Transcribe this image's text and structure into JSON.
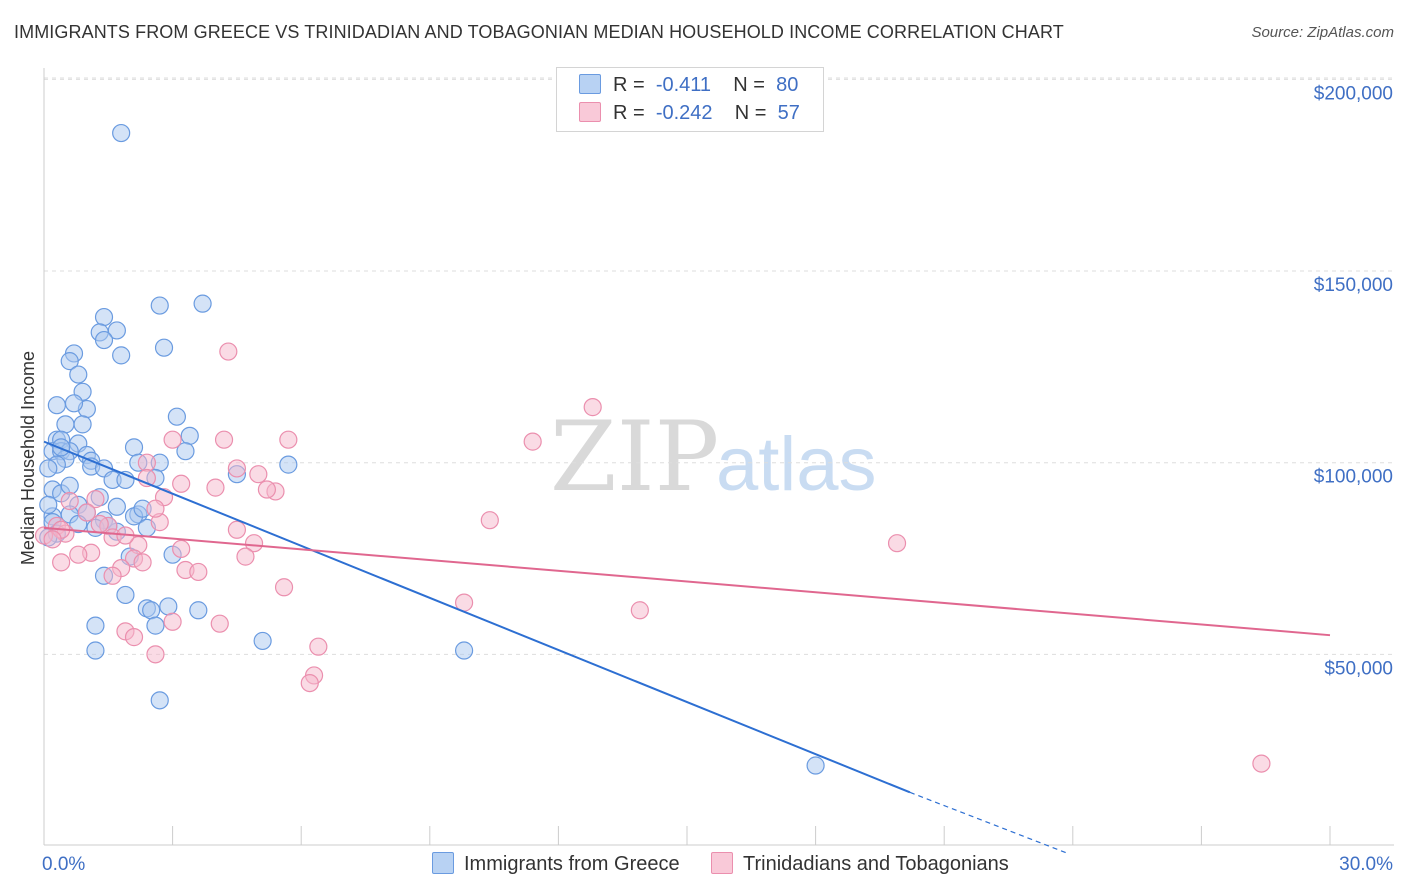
{
  "title": "IMMIGRANTS FROM GREECE VS TRINIDADIAN AND TOBAGONIAN MEDIAN HOUSEHOLD INCOME CORRELATION CHART",
  "source": "Source: ZipAtlas.com",
  "watermark": {
    "zip": "ZIP",
    "atlas": "atlas"
  },
  "legend": {
    "rows": [
      {
        "r_label": "R =",
        "r_value": "-0.411",
        "n_label": "N =",
        "n_value": "80"
      },
      {
        "r_label": "R =",
        "r_value": "-0.242",
        "n_label": "N =",
        "n_value": "57"
      }
    ]
  },
  "colors": {
    "blue_fill": "#a9c8f0",
    "blue_stroke": "#6a9be0",
    "blue_line": "#2d6fd2",
    "pink_fill": "#f5b8cb",
    "pink_stroke": "#eb8fae",
    "pink_line": "#e0678f",
    "tick_text": "#3f6fc4",
    "grid": "#dddddd"
  },
  "chart_data": {
    "type": "scatter",
    "title": "IMMIGRANTS FROM GREECE VS TRINIDADIAN AND TOBAGONIAN MEDIAN HOUSEHOLD INCOME CORRELATION CHART",
    "xlabel": "",
    "ylabel": "Median Household Income",
    "xlim": [
      0,
      30
    ],
    "ylim": [
      0,
      200000
    ],
    "x_tick_labels": [
      "0.0%",
      "30.0%"
    ],
    "y_ticks": [
      50000,
      100000,
      150000,
      200000
    ],
    "y_tick_labels": [
      "$50,000",
      "$100,000",
      "$150,000",
      "$200,000"
    ],
    "grid": "horizontal dashed",
    "legend_position": "bottom",
    "series": [
      {
        "name": "Immigrants from Greece",
        "color": "#6a9be0",
        "trend": {
          "x": [
            0,
            20.2
          ],
          "y": [
            105500,
            14000
          ],
          "dashed_to": [
            23.9,
            -2000
          ]
        },
        "points": [
          [
            1.8,
            186000
          ],
          [
            2.7,
            141000
          ],
          [
            3.7,
            141500
          ],
          [
            1.4,
            138000
          ],
          [
            1.3,
            134000
          ],
          [
            1.7,
            134500
          ],
          [
            1.4,
            132000
          ],
          [
            2.8,
            130000
          ],
          [
            1.8,
            128000
          ],
          [
            0.7,
            128500
          ],
          [
            0.6,
            126500
          ],
          [
            0.8,
            123000
          ],
          [
            0.9,
            118500
          ],
          [
            0.3,
            115000
          ],
          [
            1.0,
            114000
          ],
          [
            0.7,
            115500
          ],
          [
            3.1,
            112000
          ],
          [
            0.5,
            110000
          ],
          [
            0.9,
            110000
          ],
          [
            3.4,
            107000
          ],
          [
            0.3,
            106000
          ],
          [
            0.4,
            106000
          ],
          [
            0.8,
            105000
          ],
          [
            2.1,
            104000
          ],
          [
            0.2,
            103000
          ],
          [
            0.4,
            103000
          ],
          [
            0.6,
            103000
          ],
          [
            1.0,
            102000
          ],
          [
            0.5,
            101000
          ],
          [
            1.1,
            100500
          ],
          [
            0.3,
            99500
          ],
          [
            0.1,
            98500
          ],
          [
            1.1,
            99000
          ],
          [
            1.4,
            98500
          ],
          [
            2.2,
            100000
          ],
          [
            2.7,
            100000
          ],
          [
            5.7,
            99500
          ],
          [
            4.5,
            97000
          ],
          [
            1.6,
            95500
          ],
          [
            1.9,
            95500
          ],
          [
            3.3,
            103000
          ],
          [
            0.2,
            93000
          ],
          [
            0.4,
            92000
          ],
          [
            1.3,
            91000
          ],
          [
            0.8,
            89000
          ],
          [
            1.7,
            88500
          ],
          [
            1.0,
            87000
          ],
          [
            0.2,
            86000
          ],
          [
            0.6,
            86500
          ],
          [
            2.2,
            86500
          ],
          [
            1.4,
            85000
          ],
          [
            2.1,
            86000
          ],
          [
            0.2,
            84500
          ],
          [
            1.2,
            83000
          ],
          [
            1.7,
            82000
          ],
          [
            2.4,
            83000
          ],
          [
            0.3,
            81500
          ],
          [
            0.1,
            80500
          ],
          [
            3.0,
            76000
          ],
          [
            2.0,
            75500
          ],
          [
            1.4,
            70500
          ],
          [
            1.9,
            65500
          ],
          [
            2.4,
            62000
          ],
          [
            2.5,
            61500
          ],
          [
            2.9,
            62500
          ],
          [
            3.6,
            61500
          ],
          [
            1.2,
            57500
          ],
          [
            2.6,
            57500
          ],
          [
            5.1,
            53500
          ],
          [
            1.2,
            51000
          ],
          [
            9.8,
            51000
          ],
          [
            2.7,
            38000
          ],
          [
            18.0,
            21000
          ],
          [
            0.1,
            89000
          ],
          [
            0.6,
            94000
          ],
          [
            2.3,
            88000
          ],
          [
            0.4,
            104000
          ],
          [
            1.5,
            83500
          ],
          [
            0.8,
            84000
          ],
          [
            2.6,
            96000
          ]
        ]
      },
      {
        "name": "Trinidadians and Tobagonians",
        "color": "#eb8fae",
        "trend": {
          "x": [
            0,
            30
          ],
          "y": [
            83000,
            55000
          ]
        },
        "points": [
          [
            4.3,
            129000
          ],
          [
            12.8,
            114500
          ],
          [
            11.4,
            105500
          ],
          [
            3.0,
            106000
          ],
          [
            4.2,
            106000
          ],
          [
            5.7,
            106000
          ],
          [
            2.4,
            100000
          ],
          [
            4.5,
            98500
          ],
          [
            5.0,
            97000
          ],
          [
            2.4,
            96000
          ],
          [
            3.2,
            94500
          ],
          [
            4.0,
            93500
          ],
          [
            5.4,
            92500
          ],
          [
            5.2,
            93000
          ],
          [
            2.8,
            91000
          ],
          [
            0.6,
            90000
          ],
          [
            1.2,
            90500
          ],
          [
            1.0,
            87000
          ],
          [
            10.4,
            85000
          ],
          [
            2.7,
            84500
          ],
          [
            1.5,
            83500
          ],
          [
            0.3,
            83500
          ],
          [
            0.5,
            81500
          ],
          [
            0.0,
            81000
          ],
          [
            0.4,
            82500
          ],
          [
            4.5,
            82500
          ],
          [
            1.6,
            80500
          ],
          [
            4.9,
            79000
          ],
          [
            19.9,
            79000
          ],
          [
            2.2,
            78500
          ],
          [
            3.2,
            77500
          ],
          [
            1.1,
            76500
          ],
          [
            0.8,
            76000
          ],
          [
            2.1,
            75000
          ],
          [
            4.7,
            75500
          ],
          [
            2.3,
            74000
          ],
          [
            0.4,
            74000
          ],
          [
            1.8,
            72500
          ],
          [
            3.3,
            72000
          ],
          [
            3.6,
            71500
          ],
          [
            1.6,
            70500
          ],
          [
            5.6,
            67500
          ],
          [
            9.8,
            63500
          ],
          [
            13.9,
            61500
          ],
          [
            3.0,
            58500
          ],
          [
            4.1,
            58000
          ],
          [
            1.9,
            56000
          ],
          [
            2.1,
            54500
          ],
          [
            6.4,
            52000
          ],
          [
            2.6,
            50000
          ],
          [
            6.3,
            44500
          ],
          [
            6.2,
            42500
          ],
          [
            28.4,
            21500
          ],
          [
            1.3,
            84000
          ],
          [
            0.2,
            80000
          ],
          [
            2.6,
            88000
          ],
          [
            1.9,
            81000
          ]
        ]
      }
    ]
  }
}
